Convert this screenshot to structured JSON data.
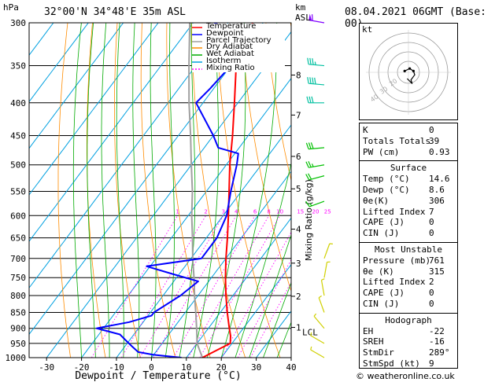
{
  "header": {
    "hpa_label": "hPa",
    "location": "32°00'N 34°48'E 35m ASL",
    "km_label": "km",
    "asl_label": "ASL",
    "datetime": "08.04.2021 06GMT (Base: 00)"
  },
  "legend": [
    {
      "label": "Temperature",
      "color": "#ff0000",
      "dash": ""
    },
    {
      "label": "Dewpoint",
      "color": "#0000ff",
      "dash": ""
    },
    {
      "label": "Parcel Trajectory",
      "color": "#a0a0a0",
      "dash": ""
    },
    {
      "label": "Dry Adiabat",
      "color": "#ff8c00",
      "dash": ""
    },
    {
      "label": "Wet Adiabat",
      "color": "#00aa00",
      "dash": ""
    },
    {
      "label": "Isotherm",
      "color": "#00a0e0",
      "dash": ""
    },
    {
      "label": "Mixing Ratio",
      "color": "#ff00ff",
      "dash": "2,2"
    }
  ],
  "indices": [
    {
      "key": "K",
      "value": "0"
    },
    {
      "key": "Totals Totals",
      "value": "39"
    },
    {
      "key": "PW (cm)",
      "value": "0.93"
    }
  ],
  "surface": {
    "title": "Surface",
    "rows": [
      {
        "key": "Temp (°C)",
        "value": "14.6"
      },
      {
        "key": "Dewp (°C)",
        "value": "8.6"
      },
      {
        "key": "θe(K)",
        "value": "306"
      },
      {
        "key": "Lifted Index",
        "value": "7"
      },
      {
        "key": "CAPE (J)",
        "value": "0"
      },
      {
        "key": "CIN (J)",
        "value": "0"
      }
    ]
  },
  "most_unstable": {
    "title": "Most Unstable",
    "rows": [
      {
        "key": "Pressure (mb)",
        "value": "761"
      },
      {
        "key": "θe (K)",
        "value": "315"
      },
      {
        "key": "Lifted Index",
        "value": "2"
      },
      {
        "key": "CAPE (J)",
        "value": "0"
      },
      {
        "key": "CIN (J)",
        "value": "0"
      }
    ]
  },
  "hodograph": {
    "title": "Hodograph",
    "kt_label": "kt",
    "rows": [
      {
        "key": "EH",
        "value": "-22"
      },
      {
        "key": "SREH",
        "value": "-16"
      },
      {
        "key": "StmDir",
        "value": "289°"
      },
      {
        "key": "StmSpd (kt)",
        "value": "9"
      }
    ],
    "ring_labels": [
      "40",
      "30",
      "20"
    ],
    "trace": [
      [
        -3,
        1
      ],
      [
        1,
        3
      ],
      [
        4,
        1
      ],
      [
        5,
        -2
      ],
      [
        2,
        -6
      ],
      [
        3,
        -9
      ],
      [
        -1,
        -5
      ]
    ]
  },
  "copyright": "© weatheronline.co.uk",
  "chart_data": {
    "type": "line",
    "subtype": "skew-T log-P diagram",
    "xlabel": "Dewpoint / Temperature (°C)",
    "ylabel_left": "hPa",
    "ylabel_right": "Mixing Ratio (g/kg)",
    "x_ticks": [
      -30,
      -20,
      -10,
      0,
      10,
      20,
      30,
      40
    ],
    "x_range": [
      -35,
      40
    ],
    "pressure_levels": [
      300,
      350,
      400,
      450,
      500,
      550,
      600,
      650,
      700,
      750,
      800,
      850,
      900,
      950,
      1000
    ],
    "pressure_range": [
      300,
      1000
    ],
    "km_ticks": [
      {
        "label": "8",
        "p": 362
      },
      {
        "label": "7",
        "p": 418
      },
      {
        "label": "6",
        "p": 485
      },
      {
        "label": "5",
        "p": 545
      },
      {
        "label": "4",
        "p": 630
      },
      {
        "label": "3",
        "p": 712
      },
      {
        "label": "2",
        "p": 802
      },
      {
        "label": "1",
        "p": 897
      }
    ],
    "lcl": {
      "label": "LCL",
      "p": 912
    },
    "mixing_ratio_labels": [
      "1",
      "2",
      "3",
      "4",
      "6",
      "8",
      "10",
      "15",
      "20",
      "25"
    ],
    "mixing_ratio_values": [
      1,
      2,
      3,
      4,
      6,
      8,
      10,
      15,
      20,
      25
    ],
    "temperature": {
      "name": "Temperature",
      "color": "#ff0000",
      "points": [
        [
          1000,
          14.6
        ],
        [
          975,
          17
        ],
        [
          950,
          19.5
        ],
        [
          925,
          18
        ],
        [
          900,
          16
        ],
        [
          850,
          12
        ],
        [
          800,
          8
        ],
        [
          750,
          4
        ],
        [
          700,
          0
        ],
        [
          650,
          -4
        ],
        [
          600,
          -8.5
        ],
        [
          550,
          -13.5
        ],
        [
          500,
          -19
        ],
        [
          450,
          -24.5
        ],
        [
          400,
          -31
        ],
        [
          350,
          -38.5
        ],
        [
          330,
          -42
        ],
        [
          310,
          -42
        ],
        [
          300,
          -43
        ]
      ]
    },
    "dewpoint": {
      "name": "Dewpoint",
      "color": "#0000ff",
      "points": [
        [
          1000,
          8.6
        ],
        [
          990,
          0
        ],
        [
          980,
          -5
        ],
        [
          960,
          -8
        ],
        [
          940,
          -11
        ],
        [
          920,
          -14
        ],
        [
          900,
          -22
        ],
        [
          880,
          -14
        ],
        [
          860,
          -9
        ],
        [
          850,
          -9
        ],
        [
          800,
          -5
        ],
        [
          760,
          -3
        ],
        [
          740,
          -12
        ],
        [
          720,
          -21
        ],
        [
          700,
          -7
        ],
        [
          650,
          -7
        ],
        [
          600,
          -9
        ],
        [
          550,
          -13
        ],
        [
          500,
          -17
        ],
        [
          480,
          -19
        ],
        [
          470,
          -26
        ],
        [
          450,
          -30
        ],
        [
          400,
          -42
        ],
        [
          380,
          -41
        ],
        [
          350,
          -40
        ],
        [
          340,
          -40
        ],
        [
          325,
          -44
        ],
        [
          320,
          -54
        ],
        [
          310,
          -46
        ],
        [
          300,
          -54
        ]
      ]
    },
    "parcel": {
      "name": "Parcel Trajectory",
      "color": "#a0a0a0",
      "points": [
        [
          1000,
          14.6
        ],
        [
          950,
          10
        ],
        [
          912,
          7.5
        ],
        [
          850,
          3
        ],
        [
          800,
          -1
        ],
        [
          750,
          -5
        ],
        [
          700,
          -9.5
        ],
        [
          650,
          -14
        ],
        [
          600,
          -19
        ],
        [
          550,
          -24
        ],
        [
          500,
          -30
        ],
        [
          450,
          -36.5
        ],
        [
          400,
          -44
        ],
        [
          350,
          -52
        ],
        [
          300,
          -61
        ]
      ]
    },
    "wind_barbs": [
      {
        "p": 300,
        "dir": 280,
        "spd": 60
      },
      {
        "p": 350,
        "dir": 275,
        "spd": 35
      },
      {
        "p": 375,
        "dir": 275,
        "spd": 40
      },
      {
        "p": 400,
        "dir": 270,
        "spd": 30
      },
      {
        "p": 470,
        "dir": 265,
        "spd": 30
      },
      {
        "p": 500,
        "dir": 260,
        "spd": 25
      },
      {
        "p": 520,
        "dir": 255,
        "spd": 20
      },
      {
        "p": 570,
        "dir": 250,
        "spd": 15
      },
      {
        "p": 700,
        "dir": 20,
        "spd": 5
      },
      {
        "p": 750,
        "dir": 10,
        "spd": 5
      },
      {
        "p": 800,
        "dir": 350,
        "spd": 5
      },
      {
        "p": 850,
        "dir": 340,
        "spd": 5
      },
      {
        "p": 900,
        "dir": 320,
        "spd": 5
      },
      {
        "p": 950,
        "dir": 300,
        "spd": 5
      },
      {
        "p": 1000,
        "dir": 300,
        "spd": 5
      }
    ]
  }
}
